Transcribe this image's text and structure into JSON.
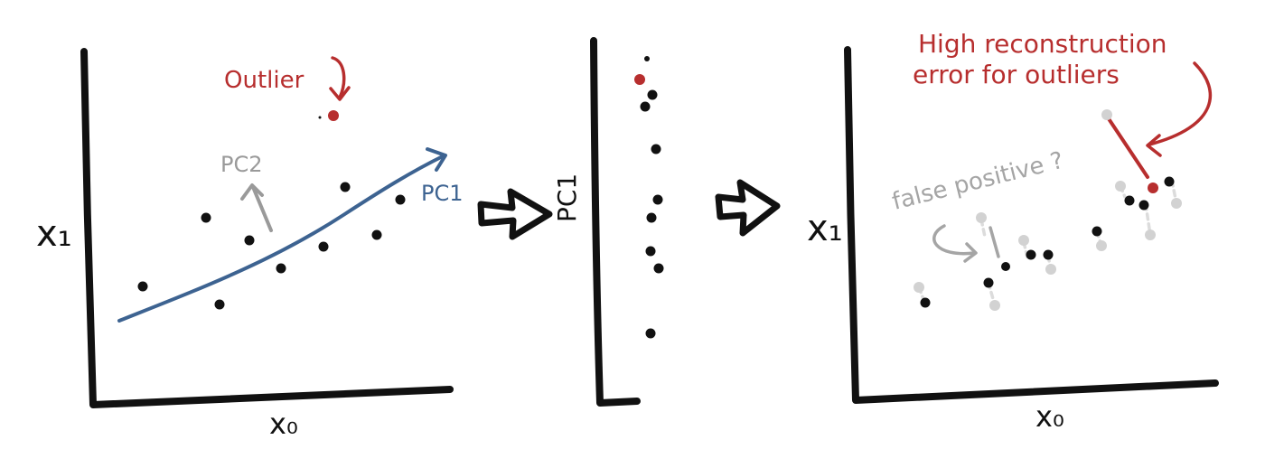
{
  "panel1": {
    "xlabel": "x₀",
    "ylabel": "x₁",
    "outlier_label": "Outlier",
    "pc1_label": "PC1",
    "pc2_label": "PC2"
  },
  "panel2": {
    "ylabel": "PC1"
  },
  "panel3": {
    "xlabel": "x₀",
    "ylabel": "x₁",
    "annotation_line1": "High reconstruction",
    "annotation_line2": "error for outliers",
    "false_positive_label": "false positive ?"
  },
  "colors": {
    "ink": "#111111",
    "outlier": "#b72e2e",
    "pc1": "#3d6391",
    "pc2": "#9a9a9a",
    "ghost": "#cfcfcf",
    "annotation_gray": "#a5a5a5"
  },
  "icons": {
    "transition_1": "right-arrow-icon",
    "transition_2": "right-arrow-icon"
  }
}
